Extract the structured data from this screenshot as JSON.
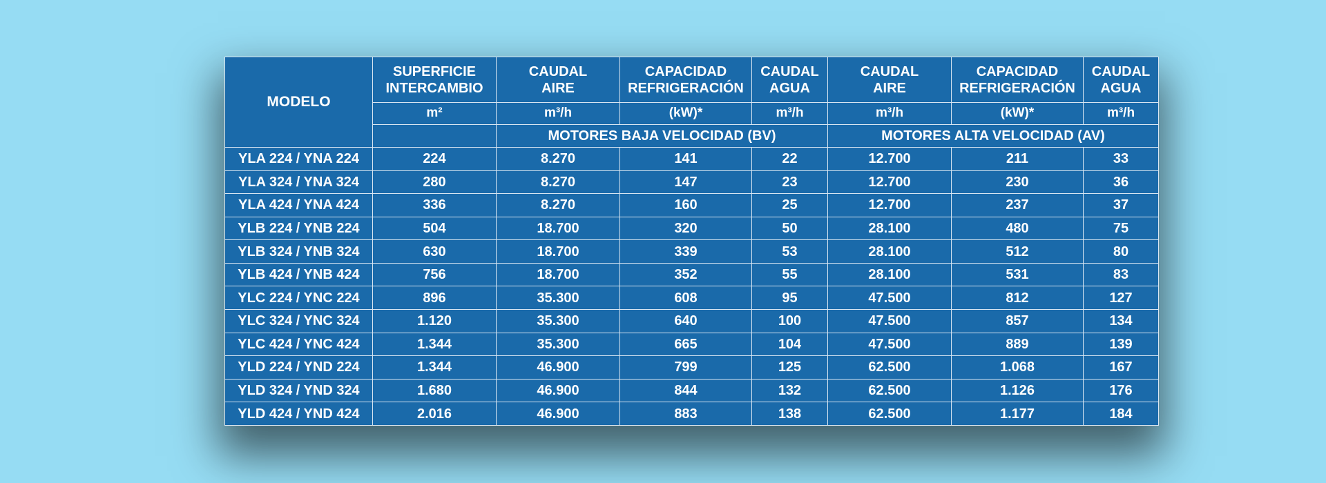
{
  "colors": {
    "background": "#96dcf3",
    "table_fill": "#1a6aaa",
    "grid_lines": "#d9e6f2",
    "text": "#ffffff"
  },
  "table": {
    "model_header": "MODELO",
    "column_titles": [
      [
        "SUPERFICIE",
        "INTERCAMBIO"
      ],
      [
        "CAUDAL",
        "AIRE"
      ],
      [
        "CAPACIDAD",
        "REFRIGERACIÓN"
      ],
      [
        "CAUDAL",
        "AGUA"
      ],
      [
        "CAUDAL",
        "AIRE"
      ],
      [
        "CAPACIDAD",
        "REFRIGERACIÓN"
      ],
      [
        "CAUDAL",
        "AGUA"
      ]
    ],
    "units": [
      "m²",
      "m³/h",
      "(kW)*",
      "m³/h",
      "m³/h",
      "(kW)*",
      "m³/h"
    ],
    "groups": {
      "low_speed": "MOTORES BAJA VELOCIDAD (BV)",
      "high_speed": "MOTORES ALTA VELOCIDAD (AV)"
    },
    "rows": [
      [
        "YLA 224 / YNA 224",
        "224",
        "8.270",
        "141",
        "22",
        "12.700",
        "211",
        "33"
      ],
      [
        "YLA 324 / YNA 324",
        "280",
        "8.270",
        "147",
        "23",
        "12.700",
        "230",
        "36"
      ],
      [
        "YLA 424 / YNA 424",
        "336",
        "8.270",
        "160",
        "25",
        "12.700",
        "237",
        "37"
      ],
      [
        "YLB 224 / YNB 224",
        "504",
        "18.700",
        "320",
        "50",
        "28.100",
        "480",
        "75"
      ],
      [
        "YLB 324 / YNB 324",
        "630",
        "18.700",
        "339",
        "53",
        "28.100",
        "512",
        "80"
      ],
      [
        "YLB 424 / YNB 424",
        "756",
        "18.700",
        "352",
        "55",
        "28.100",
        "531",
        "83"
      ],
      [
        "YLC 224 / YNC 224",
        "896",
        "35.300",
        "608",
        "95",
        "47.500",
        "812",
        "127"
      ],
      [
        "YLC 324 / YNC 324",
        "1.120",
        "35.300",
        "640",
        "100",
        "47.500",
        "857",
        "134"
      ],
      [
        "YLC 424 / YNC 424",
        "1.344",
        "35.300",
        "665",
        "104",
        "47.500",
        "889",
        "139"
      ],
      [
        "YLD 224 / YND 224",
        "1.344",
        "46.900",
        "799",
        "125",
        "62.500",
        "1.068",
        "167"
      ],
      [
        "YLD 324 / YND 324",
        "1.680",
        "46.900",
        "844",
        "132",
        "62.500",
        "1.126",
        "176"
      ],
      [
        "YLD 424 / YND 424",
        "2.016",
        "46.900",
        "883",
        "138",
        "62.500",
        "1.177",
        "184"
      ]
    ]
  }
}
